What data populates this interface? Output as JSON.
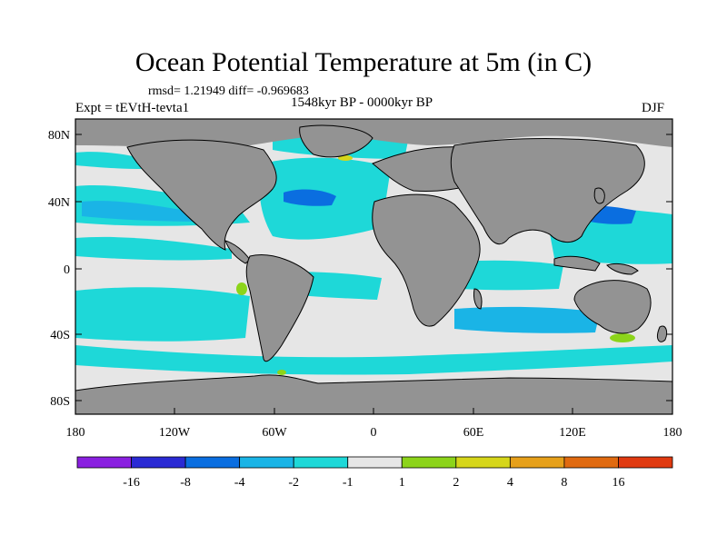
{
  "title": "Ocean Potential Temperature at 5m (in C)",
  "stats_line": "rmsd= 1.21949 diff= -0.969683",
  "experiment": "Expt = tEVtH-tevta1",
  "period": "1548kyr BP - 0000kyr BP",
  "season": "DJF",
  "map": {
    "lat_ticks": [
      "80N",
      "40N",
      "0",
      "40S",
      "80S"
    ],
    "lon_ticks": [
      "180",
      "120W",
      "60W",
      "0",
      "60E",
      "120E",
      "180"
    ]
  },
  "colorbar": {
    "colors": [
      "#8a1fe0",
      "#2a2ad4",
      "#0a6ee0",
      "#1ab4e6",
      "#1ed8d8",
      "#e6e6e6",
      "#8cd41a",
      "#d6d61a",
      "#e6a01a",
      "#e06a10",
      "#e03a10"
    ],
    "labels": [
      "-16",
      "-8",
      "-4",
      "-2",
      "-1",
      "1",
      "2",
      "4",
      "8",
      "16"
    ]
  },
  "palette": {
    "land": "#939393",
    "neutral_ocean": "#e6e6e6",
    "cool": "#1ed8d8",
    "cold": "#1ab4e6",
    "colder": "#0a6ee0",
    "warm": "#8cd41a",
    "warmer": "#d6d61a"
  }
}
